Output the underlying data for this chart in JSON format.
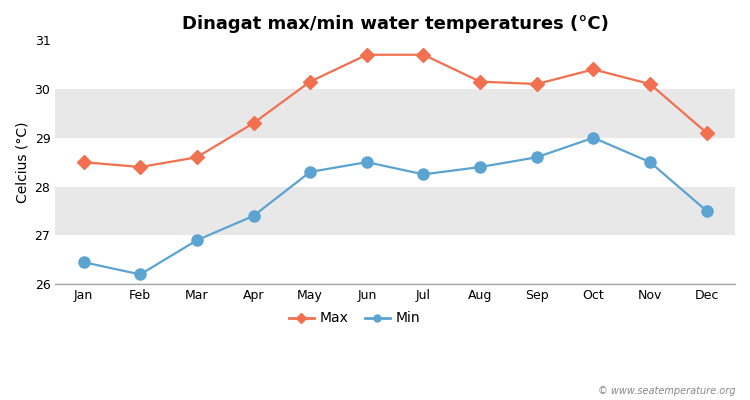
{
  "title": "Dinagat max/min water temperatures (°C)",
  "ylabel": "Celcius (°C)",
  "months": [
    "Jan",
    "Feb",
    "Mar",
    "Apr",
    "May",
    "Jun",
    "Jul",
    "Aug",
    "Sep",
    "Oct",
    "Nov",
    "Dec"
  ],
  "max_temps": [
    28.5,
    28.4,
    28.6,
    29.3,
    30.15,
    30.7,
    30.7,
    30.15,
    30.1,
    30.4,
    30.1,
    29.1
  ],
  "min_temps": [
    26.45,
    26.2,
    26.9,
    27.4,
    28.3,
    28.5,
    28.25,
    28.4,
    28.6,
    29.0,
    28.5,
    27.5
  ],
  "max_color": "#f07050",
  "min_color": "#5ba3d0",
  "bg_color": "#ffffff",
  "band_colors": [
    "#ffffff",
    "#e8e8e8"
  ],
  "ylim": [
    26,
    31
  ],
  "yticks": [
    26,
    27,
    28,
    29,
    30,
    31
  ],
  "marker_size_max": 7,
  "marker_size_min": 8,
  "line_width": 1.6,
  "title_fontsize": 13,
  "label_fontsize": 10,
  "tick_fontsize": 9,
  "watermark": "© www.seatemperature.org",
  "legend_labels": [
    "Max",
    "Min"
  ]
}
